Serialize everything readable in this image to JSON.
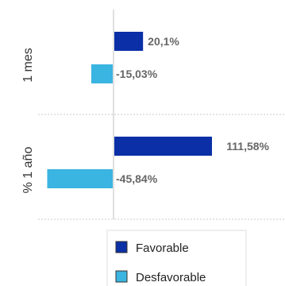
{
  "chart_data": {
    "type": "bar",
    "orientation": "horizontal",
    "categories": [
      "1 mes",
      "% 1 año"
    ],
    "series": [
      {
        "name": "Favorable",
        "color": "#0a2fa6",
        "values": [
          20.1,
          111.58
        ],
        "labels": [
          "20,1%",
          "111,58%"
        ]
      },
      {
        "name": "Desfavorable",
        "color": "#3ab4e0",
        "values": [
          -15.03,
          -45.84
        ],
        "labels": [
          "-15,03%",
          "-45,84%"
        ]
      }
    ],
    "title": "",
    "xlabel": "",
    "ylabel": "",
    "grid": false,
    "legend_position": "bottom"
  }
}
